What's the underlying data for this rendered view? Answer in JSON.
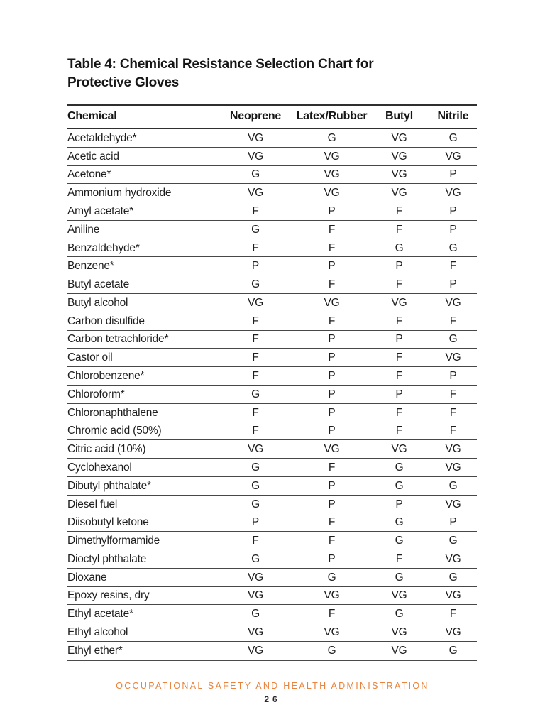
{
  "page": {
    "title_lines": [
      "Table 4: Chemical Resistance Selection Chart for",
      "Protective Gloves"
    ]
  },
  "table": {
    "columns": [
      "Chemical",
      "Neoprene",
      "Latex/Rubber",
      "Butyl",
      "Nitrile"
    ],
    "rows": [
      {
        "chemical": "Acetaldehyde*",
        "ratings": [
          "VG",
          "G",
          "VG",
          "G"
        ]
      },
      {
        "chemical": "Acetic acid",
        "ratings": [
          "VG",
          "VG",
          "VG",
          "VG"
        ]
      },
      {
        "chemical": "Acetone*",
        "ratings": [
          "G",
          "VG",
          "VG",
          "P"
        ]
      },
      {
        "chemical": "Ammonium hydroxide",
        "ratings": [
          "VG",
          "VG",
          "VG",
          "VG"
        ]
      },
      {
        "chemical": "Amyl acetate*",
        "ratings": [
          "F",
          "P",
          "F",
          "P"
        ]
      },
      {
        "chemical": "Aniline",
        "ratings": [
          "G",
          "F",
          "F",
          "P"
        ]
      },
      {
        "chemical": "Benzaldehyde*",
        "ratings": [
          "F",
          "F",
          "G",
          "G"
        ]
      },
      {
        "chemical": "Benzene*",
        "ratings": [
          "P",
          "P",
          "P",
          "F"
        ]
      },
      {
        "chemical": "Butyl acetate",
        "ratings": [
          "G",
          "F",
          "F",
          "P"
        ]
      },
      {
        "chemical": "Butyl alcohol",
        "ratings": [
          "VG",
          "VG",
          "VG",
          "VG"
        ]
      },
      {
        "chemical": "Carbon disulfide",
        "ratings": [
          "F",
          "F",
          "F",
          "F"
        ]
      },
      {
        "chemical": "Carbon tetrachloride*",
        "ratings": [
          "F",
          "P",
          "P",
          "G"
        ]
      },
      {
        "chemical": "Castor oil",
        "ratings": [
          "F",
          "P",
          "F",
          "VG"
        ]
      },
      {
        "chemical": "Chlorobenzene*",
        "ratings": [
          "F",
          "P",
          "F",
          "P"
        ]
      },
      {
        "chemical": "Chloroform*",
        "ratings": [
          "G",
          "P",
          "P",
          "F"
        ]
      },
      {
        "chemical": "Chloronaphthalene",
        "ratings": [
          "F",
          "P",
          "F",
          "F"
        ]
      },
      {
        "chemical": "Chromic acid (50%)",
        "ratings": [
          "F",
          "P",
          "F",
          "F"
        ]
      },
      {
        "chemical": "Citric acid (10%)",
        "ratings": [
          "VG",
          "VG",
          "VG",
          "VG"
        ]
      },
      {
        "chemical": "Cyclohexanol",
        "ratings": [
          "G",
          "F",
          "G",
          "VG"
        ]
      },
      {
        "chemical": "Dibutyl phthalate*",
        "ratings": [
          "G",
          "P",
          "G",
          "G"
        ]
      },
      {
        "chemical": "Diesel fuel",
        "ratings": [
          "G",
          "P",
          "P",
          "VG"
        ]
      },
      {
        "chemical": "Diisobutyl ketone",
        "ratings": [
          "P",
          "F",
          "G",
          "P"
        ]
      },
      {
        "chemical": "Dimethylformamide",
        "ratings": [
          "F",
          "F",
          "G",
          "G"
        ]
      },
      {
        "chemical": "Dioctyl phthalate",
        "ratings": [
          "G",
          "P",
          "F",
          "VG"
        ]
      },
      {
        "chemical": "Dioxane",
        "ratings": [
          "VG",
          "G",
          "G",
          "G"
        ]
      },
      {
        "chemical": "Epoxy resins, dry",
        "ratings": [
          "VG",
          "VG",
          "VG",
          "VG"
        ]
      },
      {
        "chemical": "Ethyl acetate*",
        "ratings": [
          "G",
          "F",
          "G",
          "F"
        ]
      },
      {
        "chemical": "Ethyl alcohol",
        "ratings": [
          "VG",
          "VG",
          "VG",
          "VG"
        ]
      },
      {
        "chemical": "Ethyl ether*",
        "ratings": [
          "VG",
          "G",
          "VG",
          "G"
        ]
      }
    ]
  },
  "footer": {
    "organization": "OCCUPATIONAL SAFETY AND HEALTH ADMINISTRATION",
    "page_number": "26"
  },
  "colors": {
    "accent_orange": "#E8823C",
    "text": "#1E1E1E",
    "rule_heavy": "#2F2F2F",
    "rule_light": "#474747"
  }
}
